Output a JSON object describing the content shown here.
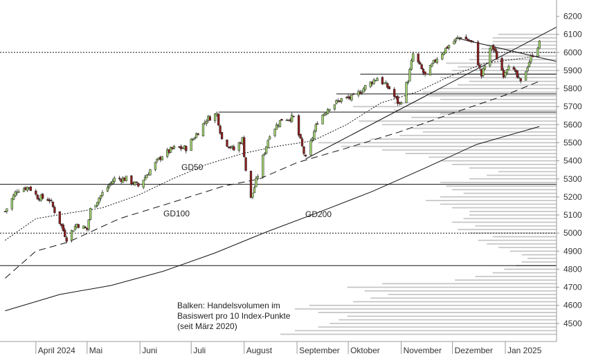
{
  "colors": {
    "candle_up": "#9fd06f",
    "candle_down": "#8c1f1f",
    "candle_outline": "#222222",
    "volume_bar": "#c4c4c4",
    "line": "#111111",
    "axis": "#999999"
  },
  "chart_data": {
    "type": "candlestick",
    "ylim": [
      4400,
      6290
    ],
    "y_ticks": [
      4500,
      4600,
      4700,
      4800,
      4900,
      5000,
      5100,
      5200,
      5300,
      5400,
      5500,
      5600,
      5700,
      5800,
      5900,
      6000,
      6100,
      6200
    ],
    "month_labels": [
      {
        "label": "April 2024",
        "date": "2024-04-01"
      },
      {
        "label": "Mai",
        "date": "2024-05-01"
      },
      {
        "label": "Juni",
        "date": "2024-06-01"
      },
      {
        "label": "Juli",
        "date": "2024-07-01"
      },
      {
        "label": "August",
        "date": "2024-08-01"
      },
      {
        "label": "September",
        "date": "2024-09-01"
      },
      {
        "label": "Oktober",
        "date": "2024-10-01"
      },
      {
        "label": "November",
        "date": "2024-11-01"
      },
      {
        "label": "Dezember",
        "date": "2024-12-01"
      },
      {
        "label": "Jan 2025",
        "date": "2025-01-01"
      }
    ],
    "close_path": [
      [
        "2024-03-14",
        5120
      ],
      [
        "2024-03-21",
        5240
      ],
      [
        "2024-03-28",
        5255
      ],
      [
        "2024-04-02",
        5200
      ],
      [
        "2024-04-09",
        5185
      ],
      [
        "2024-04-15",
        5060
      ],
      [
        "2024-04-19",
        4970
      ],
      [
        "2024-04-25",
        5050
      ],
      [
        "2024-05-01",
        5020
      ],
      [
        "2024-05-03",
        5130
      ],
      [
        "2024-05-10",
        5220
      ],
      [
        "2024-05-17",
        5300
      ],
      [
        "2024-05-24",
        5300
      ],
      [
        "2024-05-31",
        5260
      ],
      [
        "2024-06-07",
        5350
      ],
      [
        "2024-06-14",
        5430
      ],
      [
        "2024-06-21",
        5470
      ],
      [
        "2024-06-28",
        5470
      ],
      [
        "2024-07-05",
        5560
      ],
      [
        "2024-07-10",
        5630
      ],
      [
        "2024-07-16",
        5660
      ],
      [
        "2024-07-19",
        5520
      ],
      [
        "2024-07-26",
        5460
      ],
      [
        "2024-07-31",
        5520
      ],
      [
        "2024-08-02",
        5350
      ],
      [
        "2024-08-05",
        5190
      ],
      [
        "2024-08-09",
        5320
      ],
      [
        "2024-08-16",
        5550
      ],
      [
        "2024-08-23",
        5630
      ],
      [
        "2024-08-30",
        5640
      ],
      [
        "2024-09-06",
        5410
      ],
      [
        "2024-09-13",
        5620
      ],
      [
        "2024-09-20",
        5700
      ],
      [
        "2024-09-27",
        5740
      ],
      [
        "2024-10-04",
        5750
      ],
      [
        "2024-10-11",
        5810
      ],
      [
        "2024-10-18",
        5860
      ],
      [
        "2024-10-25",
        5800
      ],
      [
        "2024-10-31",
        5710
      ],
      [
        "2024-11-05",
        5850
      ],
      [
        "2024-11-08",
        5990
      ],
      [
        "2024-11-15",
        5870
      ],
      [
        "2024-11-22",
        5970
      ],
      [
        "2024-11-29",
        6040
      ],
      [
        "2024-12-06",
        6090
      ],
      [
        "2024-12-13",
        6050
      ],
      [
        "2024-12-18",
        5870
      ],
      [
        "2024-12-24",
        6040
      ],
      [
        "2024-12-31",
        5880
      ],
      [
        "2025-01-03",
        5940
      ],
      [
        "2025-01-10",
        5830
      ],
      [
        "2025-01-15",
        5950
      ],
      [
        "2025-01-17",
        5990
      ],
      [
        "2025-01-21",
        6050
      ]
    ],
    "moving_averages": [
      {
        "label": "GD50",
        "style": "dotted",
        "points": [
          [
            "2024-03-14",
            4960
          ],
          [
            "2024-04-01",
            5080
          ],
          [
            "2024-04-20",
            5110
          ],
          [
            "2024-05-10",
            5140
          ],
          [
            "2024-05-31",
            5210
          ],
          [
            "2024-06-20",
            5300
          ],
          [
            "2024-07-10",
            5380
          ],
          [
            "2024-07-31",
            5440
          ],
          [
            "2024-08-20",
            5480
          ],
          [
            "2024-09-10",
            5510
          ],
          [
            "2024-09-30",
            5600
          ],
          [
            "2024-10-20",
            5720
          ],
          [
            "2024-11-10",
            5780
          ],
          [
            "2024-11-30",
            5870
          ],
          [
            "2024-12-20",
            5940
          ],
          [
            "2025-01-21",
            5980
          ]
        ]
      },
      {
        "label": "GD100",
        "style": "dashed",
        "points": [
          [
            "2024-03-14",
            4750
          ],
          [
            "2024-04-01",
            4900
          ],
          [
            "2024-04-20",
            4950
          ],
          [
            "2024-05-20",
            5080
          ],
          [
            "2024-06-20",
            5170
          ],
          [
            "2024-07-20",
            5260
          ],
          [
            "2024-08-10",
            5300
          ],
          [
            "2024-09-01",
            5390
          ],
          [
            "2024-09-30",
            5470
          ],
          [
            "2024-10-31",
            5560
          ],
          [
            "2024-11-30",
            5660
          ],
          [
            "2024-12-31",
            5760
          ],
          [
            "2025-01-21",
            5840
          ]
        ]
      },
      {
        "label": "GD200",
        "style": "solid",
        "points": [
          [
            "2024-03-14",
            4570
          ],
          [
            "2024-04-15",
            4660
          ],
          [
            "2024-05-15",
            4710
          ],
          [
            "2024-06-15",
            4790
          ],
          [
            "2024-07-15",
            4890
          ],
          [
            "2024-08-15",
            5010
          ],
          [
            "2024-09-15",
            5120
          ],
          [
            "2024-10-15",
            5230
          ],
          [
            "2024-11-15",
            5360
          ],
          [
            "2024-12-15",
            5490
          ],
          [
            "2025-01-21",
            5590
          ]
        ]
      }
    ],
    "horizontal_lines": [
      {
        "value": 6000,
        "style": "dotted"
      },
      {
        "value": 5880,
        "style": "solid",
        "from": "2024-10-08"
      },
      {
        "value": 5770,
        "style": "solid",
        "from": "2024-09-24"
      },
      {
        "value": 5670,
        "style": "solid",
        "from": "2024-07-17"
      },
      {
        "value": 5270,
        "style": "solid"
      },
      {
        "value": 5000,
        "style": "dotted"
      },
      {
        "value": 4820,
        "style": "solid"
      }
    ],
    "trend_lines": [
      {
        "from": [
          "2024-09-06",
          5410
        ],
        "to": [
          "2025-01-31",
          6140
        ]
      },
      {
        "from": [
          "2024-12-03",
          6080
        ],
        "to": [
          "2025-01-31",
          5950
        ]
      }
    ],
    "volume_profile": {
      "bin_size": 10,
      "levels": [
        4440,
        4460,
        4480,
        4500,
        4520,
        4540,
        4560,
        4580,
        4600,
        4620,
        4640,
        4660,
        4680,
        4700,
        4720,
        4740,
        4760,
        4780,
        4800,
        4820,
        4840,
        4860,
        4880,
        4900,
        4920,
        4940,
        4960,
        4980,
        5000,
        5020,
        5040,
        5060,
        5080,
        5100,
        5120,
        5140,
        5160,
        5180,
        5200,
        5220,
        5240,
        5260,
        5280,
        5300,
        5320,
        5340,
        5360,
        5380,
        5400,
        5420,
        5440,
        5460,
        5480,
        5500,
        5520,
        5540,
        5560,
        5580,
        5600,
        5620,
        5640,
        5660,
        5680,
        5700,
        5720,
        5740,
        5760,
        5780,
        5800,
        5820,
        5840,
        5860,
        5880,
        5900,
        5920,
        5940,
        5960,
        5980,
        6000,
        6020,
        6040,
        6060,
        6080,
        6100
      ],
      "volume": [
        0.95,
        0.9,
        0.82,
        0.78,
        0.75,
        0.72,
        0.82,
        0.9,
        0.85,
        0.7,
        0.64,
        0.58,
        0.66,
        0.72,
        0.6,
        0.35,
        0.28,
        0.22,
        0.18,
        0.14,
        0.12,
        0.1,
        0.12,
        0.16,
        0.2,
        0.24,
        0.27,
        0.22,
        0.3,
        0.34,
        0.28,
        0.36,
        0.32,
        0.3,
        0.3,
        0.36,
        0.4,
        0.45,
        0.4,
        0.32,
        0.36,
        0.38,
        0.4,
        0.3,
        0.24,
        0.2,
        0.3,
        0.36,
        0.4,
        0.44,
        0.52,
        0.6,
        0.74,
        0.82,
        0.64,
        0.54,
        0.46,
        0.5,
        0.6,
        0.68,
        0.5,
        0.4,
        0.56,
        0.7,
        0.56,
        0.4,
        0.44,
        0.46,
        0.4,
        0.34,
        0.3,
        0.4,
        0.46,
        0.36,
        0.34,
        0.38,
        0.3,
        0.28,
        0.26,
        0.26,
        0.24,
        0.22,
        0.22,
        0.2
      ]
    }
  },
  "annotations": {
    "gd50": "GD50",
    "gd100": "GD100",
    "gd200": "GD200",
    "legend_line1": "Balken: Handelsvolumen im",
    "legend_line2": "Basiswert pro 10 Index-Punkte",
    "legend_line3": "(seit März 2020)"
  }
}
